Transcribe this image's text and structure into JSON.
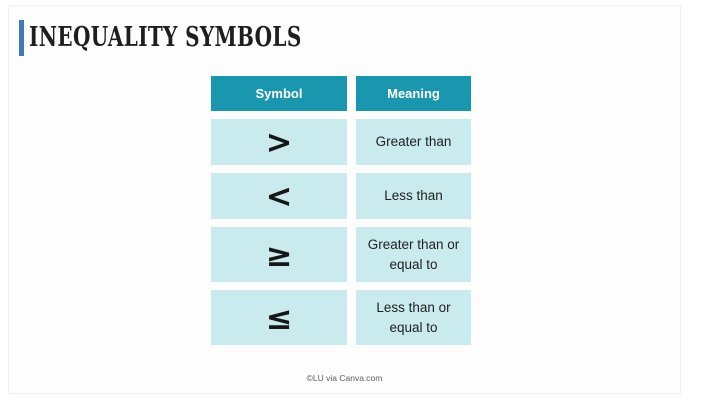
{
  "slide": {
    "title": "INEQUALITY SYMBOLS",
    "footer": "©LU via Canva.com",
    "accent_bar_color": "#3e79b8",
    "background_color": "#ffffff"
  },
  "table": {
    "header_bg_color": "#1a96ae",
    "header_text_color": "#ffffff",
    "cell_bg_color": "#c9ebee",
    "cell_text_color": "#212121",
    "headers": [
      "Symbol",
      "Meaning"
    ],
    "rows": [
      {
        "symbol": ">",
        "meaning": "Greater than"
      },
      {
        "symbol": "<",
        "meaning": "Less than"
      },
      {
        "symbol": "≥",
        "meaning": "Greater than or equal to"
      },
      {
        "symbol": "≤",
        "meaning": "Less than or equal to"
      }
    ]
  }
}
